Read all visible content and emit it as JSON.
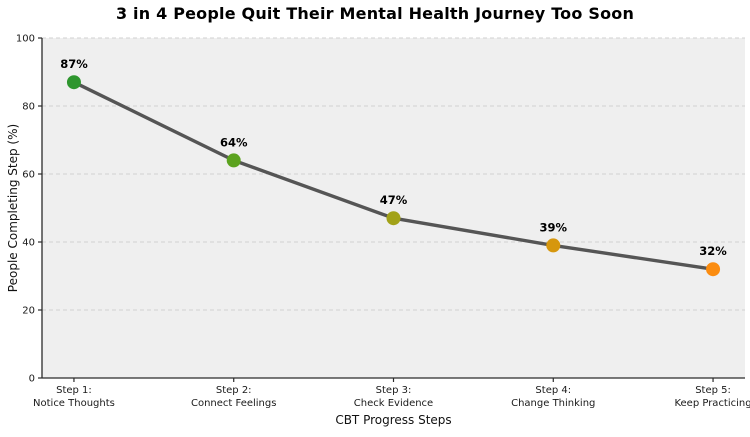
{
  "title": "3 in 4 People Quit Their Mental Health Journey Too Soon",
  "chart_data": {
    "type": "line",
    "title": "3 in 4 People Quit Their Mental Health Journey Too Soon",
    "xlabel": "CBT Progress Steps",
    "ylabel": "People Completing Step (%)",
    "categories": [
      [
        "Step 1:",
        "Notice Thoughts"
      ],
      [
        "Step 2:",
        "Connect Feelings"
      ],
      [
        "Step 3:",
        "Check Evidence"
      ],
      [
        "Step 4:",
        "Change Thinking"
      ],
      [
        "Step 5:",
        "Keep Practicing"
      ]
    ],
    "values": [
      87,
      64,
      47,
      39,
      32
    ],
    "point_labels": [
      "87%",
      "64%",
      "47%",
      "39%",
      "32%"
    ],
    "point_colors": [
      "#2e962e",
      "#5ba21e",
      "#a2a218",
      "#d6970e",
      "#fb8c10"
    ],
    "line_color": "#555555",
    "ylim": [
      0,
      100
    ],
    "yticks": [
      0,
      20,
      40,
      60,
      80,
      100
    ],
    "grid": "horizontal-dashed",
    "legend": "none",
    "plot_bg_color": "#efefef",
    "grid_color": "#d2d2d2",
    "spine_color": "#2b2b2b",
    "tick_label_color": "#1a1a1a"
  }
}
